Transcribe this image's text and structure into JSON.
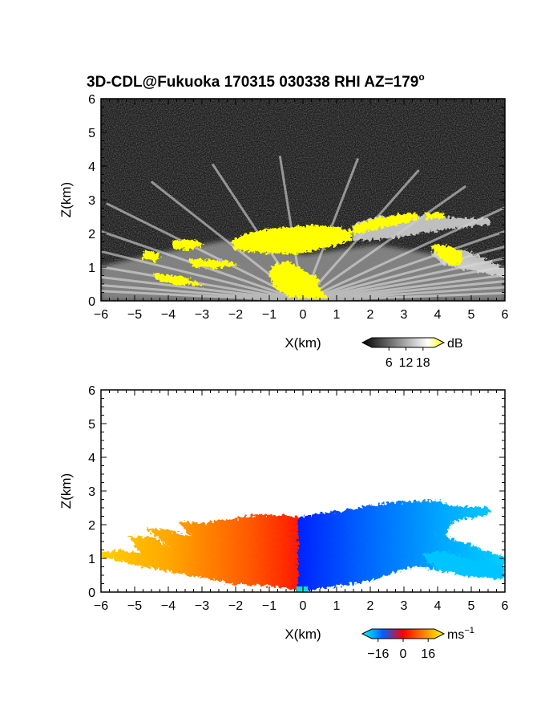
{
  "title": "3D-CDL@Fukuoka 170315 030338 RHI AZ=179",
  "title_sup": "o",
  "chart_data": [
    {
      "type": "heatmap",
      "quantity": "SNR",
      "xlabel": "X(km)",
      "ylabel": "Z(km)",
      "xlim": [
        -6,
        6
      ],
      "ylim": [
        0,
        6
      ],
      "xticks": [
        -6,
        -5,
        -4,
        -3,
        -2,
        -1,
        0,
        1,
        2,
        3,
        4,
        5,
        6
      ],
      "yticks": [
        0,
        1,
        2,
        3,
        4,
        5,
        6
      ],
      "colorbar": {
        "unit": "dB",
        "ticks": [
          6,
          12,
          18
        ],
        "colors": [
          "#000000",
          "#ffffff",
          "#ffff00"
        ]
      },
      "features": [
        {
          "name": "ground-echo-beams",
          "x_range": [
            -6,
            6
          ],
          "z_range": [
            0,
            1.3
          ]
        },
        {
          "name": "cloud-layer",
          "x_range": [
            -2.2,
            1.6
          ],
          "z_range": [
            1.5,
            2.3
          ],
          "snr_db": 18
        },
        {
          "name": "upper-layer",
          "x_range": [
            1.5,
            5.8
          ],
          "z_range": [
            1.8,
            2.7
          ]
        }
      ]
    },
    {
      "type": "heatmap",
      "quantity": "Doppler velocity",
      "xlabel": "X(km)",
      "ylabel": "Z(km)",
      "xlim": [
        -6,
        6
      ],
      "ylim": [
        0,
        6
      ],
      "xticks": [
        -6,
        -5,
        -4,
        -3,
        -2,
        -1,
        0,
        1,
        2,
        3,
        4,
        5,
        6
      ],
      "yticks": [
        0,
        1,
        2,
        3,
        4,
        5,
        6
      ],
      "colorbar": {
        "unit": "ms",
        "unit_sup": "−1",
        "ticks": [
          "−16",
          "0",
          "16"
        ],
        "colors": [
          "#00ffff",
          "#0000ff",
          "#ff0000",
          "#ffff00"
        ]
      },
      "features": [
        {
          "name": "negative-x-region",
          "x_range": [
            -6,
            0
          ],
          "velocity_ms": [
            2,
            16
          ]
        },
        {
          "name": "positive-x-region",
          "x_range": [
            0,
            6
          ],
          "velocity_ms": [
            -16,
            -4
          ]
        }
      ]
    }
  ]
}
